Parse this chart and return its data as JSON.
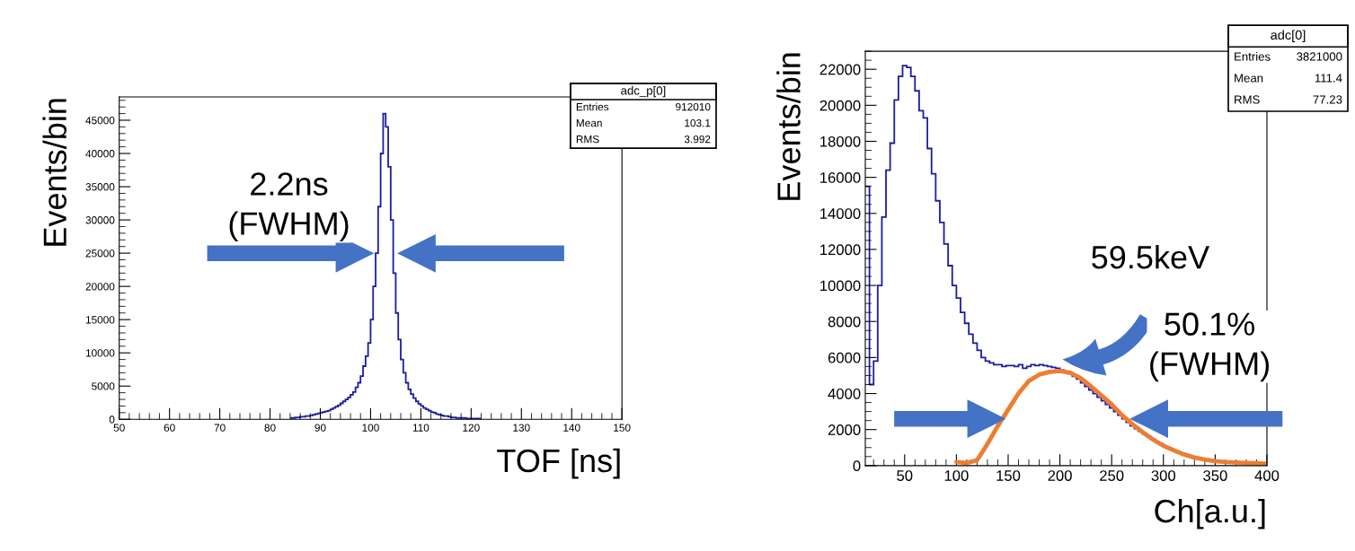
{
  "chart_data": [
    {
      "type": "histogram",
      "xlabel": "TOF [ns]",
      "ylabel": "Events/bin",
      "color": "#1c1ca0",
      "bins": [
        84,
        84.5,
        85,
        85.5,
        86,
        86.5,
        87,
        87.5,
        88,
        88.5,
        89,
        89.5,
        90,
        90.5,
        91,
        91.5,
        92,
        92.5,
        93,
        93.5,
        94,
        94.5,
        95,
        95.5,
        96,
        96.5,
        97,
        97.5,
        98,
        98.5,
        99,
        99.5,
        100,
        100.5,
        101,
        101.5,
        102,
        102.5,
        103,
        103.5,
        104,
        104.5,
        105,
        105.5,
        106,
        106.5,
        107,
        107.5,
        108,
        108.5,
        109,
        109.5,
        110,
        110.5,
        111,
        111.5,
        112,
        112.5,
        113,
        113.5,
        114,
        114.5,
        115,
        115.5,
        116,
        116.5,
        117,
        117.5,
        118,
        118.5,
        119,
        119.5,
        120,
        120.5,
        121,
        121.5,
        122
      ],
      "values": [
        200,
        200,
        300,
        300,
        400,
        400,
        500,
        500,
        600,
        700,
        800,
        900,
        1000,
        1100,
        1200,
        1300,
        1500,
        1700,
        1900,
        2100,
        2400,
        2700,
        3000,
        3300,
        3700,
        4100,
        4800,
        5500,
        6500,
        8000,
        9500,
        11500,
        15000,
        20000,
        25000,
        32000,
        40000,
        46000,
        44000,
        38000,
        30000,
        22000,
        16000,
        12000,
        9000,
        7000,
        5500,
        4500,
        3800,
        3200,
        2700,
        2300,
        2000,
        1700,
        1500,
        1300,
        1100,
        1000,
        800,
        700,
        600,
        500,
        500,
        400,
        300,
        300,
        200,
        200,
        200,
        200,
        100,
        100,
        100,
        100,
        100,
        100
      ],
      "xlim": [
        50,
        150
      ],
      "xticks": [
        50,
        60,
        70,
        80,
        90,
        100,
        110,
        120,
        130,
        140,
        150
      ],
      "ylim": [
        0,
        48500
      ],
      "yticks": [
        0,
        5000,
        10000,
        15000,
        20000,
        25000,
        30000,
        35000,
        40000,
        45000
      ],
      "grid": false,
      "annotations": [
        "2.2ns\n(FWHM)",
        "adc_p[0]",
        "Entries",
        "912010",
        "Mean",
        "103.1",
        "RMS",
        "3.992"
      ]
    },
    {
      "type": "histogram",
      "xlabel": "Ch[a.u.]",
      "ylabel": "Events/bin",
      "color": "#1c1ca0",
      "bins": [
        12,
        16,
        20,
        24,
        28,
        32,
        36,
        40,
        44,
        48,
        52,
        56,
        60,
        64,
        68,
        72,
        76,
        80,
        84,
        88,
        92,
        96,
        100,
        104,
        108,
        112,
        116,
        120,
        124,
        128,
        132,
        136,
        140,
        144,
        148,
        152,
        156,
        160,
        164,
        168,
        172,
        176,
        180,
        184,
        188,
        192,
        196,
        200,
        204,
        208,
        212,
        216,
        220,
        224,
        228,
        232,
        236,
        240,
        244,
        248,
        252,
        256,
        260,
        264,
        268,
        272,
        276,
        280,
        284,
        288,
        292,
        296,
        300,
        304,
        308,
        312,
        316,
        320,
        324,
        328,
        332,
        336,
        340,
        344,
        348,
        352,
        356,
        360,
        364,
        368,
        372,
        376,
        380,
        384,
        388,
        392,
        396,
        400
      ],
      "values": [
        15500,
        4500,
        5800,
        10000,
        13800,
        16400,
        17900,
        20300,
        21600,
        22200,
        22100,
        21600,
        20800,
        19700,
        19300,
        17600,
        16200,
        14700,
        13500,
        12300,
        11100,
        10000,
        9300,
        8500,
        7900,
        7300,
        6800,
        6400,
        6000,
        5800,
        5700,
        5600,
        5600,
        5500,
        5550,
        5550,
        5500,
        5600,
        5400,
        5500,
        5600,
        5550,
        5600,
        5550,
        5500,
        5450,
        5400,
        5300,
        5200,
        5100,
        4950,
        4800,
        4600,
        4400,
        4200,
        4000,
        3800,
        3600,
        3400,
        3200,
        3000,
        2800,
        2600,
        2400,
        2200,
        2050,
        1900,
        1750,
        1600,
        1450,
        1300,
        1200,
        1050,
        950,
        850,
        750,
        680,
        600,
        530,
        470,
        420,
        370,
        330,
        290,
        260,
        230,
        210,
        190,
        170,
        160,
        150,
        140,
        130,
        120,
        110,
        100,
        90
      ],
      "series": [
        {
          "type": "line",
          "color": "#ed7d31",
          "x": [
            100,
            110,
            120,
            130,
            140,
            150,
            160,
            170,
            180,
            190,
            200,
            210,
            220,
            230,
            240,
            250,
            260,
            270,
            280,
            290,
            300,
            310,
            320,
            330,
            340,
            350,
            360,
            370,
            380,
            390,
            398
          ],
          "values": [
            200,
            150,
            300,
            1200,
            2200,
            3100,
            4000,
            4700,
            5050,
            5200,
            5250,
            5150,
            4850,
            4400,
            3900,
            3400,
            2800,
            2300,
            1850,
            1450,
            1100,
            850,
            620,
            450,
            330,
            250,
            200,
            170,
            150,
            130,
            110
          ]
        }
      ],
      "xlim": [
        12,
        400
      ],
      "xticks": [
        50,
        100,
        150,
        200,
        250,
        300,
        350,
        400
      ],
      "ylim": [
        0,
        23000
      ],
      "yticks": [
        0,
        2000,
        4000,
        6000,
        8000,
        10000,
        12000,
        14000,
        16000,
        18000,
        20000,
        22000
      ],
      "grid": false,
      "annotations": [
        "59.5keV",
        "50.1%\n(FWHM)",
        "adc[0]",
        "Entries",
        "3821000",
        "Mean",
        "111.4",
        "RMS",
        "77.23"
      ]
    }
  ]
}
